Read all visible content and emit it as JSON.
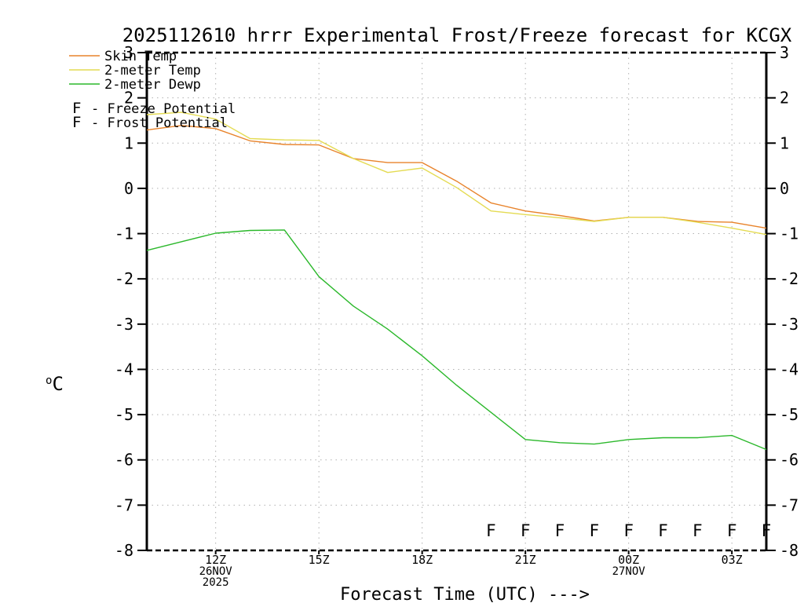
{
  "chart_data": {
    "type": "line",
    "title": "2025112610 hrrr Experimental Frost/Freeze forecast for KCGX",
    "x_axis": {
      "title": "Forecast Time (UTC) --->",
      "range_hours": [
        10,
        28
      ],
      "major_ticks": [
        {
          "hour": 12,
          "label": "12Z",
          "sub1": "26NOV",
          "sub2": "2025"
        },
        {
          "hour": 15,
          "label": "15Z",
          "sub1": "",
          "sub2": ""
        },
        {
          "hour": 18,
          "label": "18Z",
          "sub1": "",
          "sub2": ""
        },
        {
          "hour": 21,
          "label": "21Z",
          "sub1": "",
          "sub2": ""
        },
        {
          "hour": 24,
          "label": "00Z",
          "sub1": "27NOV",
          "sub2": ""
        },
        {
          "hour": 27,
          "label": "03Z",
          "sub1": "",
          "sub2": ""
        }
      ]
    },
    "y_axis": {
      "unit": "°C",
      "min": -8,
      "max": 3,
      "tick_step": 1,
      "tick_labels": [
        "3",
        "2",
        "1",
        "0",
        "-1",
        "-2",
        "-3",
        "-4",
        "-5",
        "-6",
        "-7",
        "-8"
      ]
    },
    "grid": {
      "show": true,
      "color": "#b0b0b0"
    },
    "series": [
      {
        "name": "Skin Temp",
        "color": "#e8832b",
        "points": [
          [
            10,
            1.29
          ],
          [
            11,
            1.39
          ],
          [
            12,
            1.32
          ],
          [
            13,
            1.05
          ],
          [
            14,
            0.97
          ],
          [
            15,
            0.96
          ],
          [
            16,
            0.66
          ],
          [
            17,
            0.57
          ],
          [
            18,
            0.57
          ],
          [
            19,
            0.16
          ],
          [
            20,
            -0.32
          ],
          [
            21,
            -0.5
          ],
          [
            22,
            -0.6
          ],
          [
            23,
            -0.72
          ],
          [
            24,
            -0.64
          ],
          [
            25,
            -0.64
          ],
          [
            26,
            -0.73
          ],
          [
            27,
            -0.75
          ],
          [
            28,
            -0.88
          ]
        ]
      },
      {
        "name": "2-meter Temp",
        "color": "#e4db52",
        "points": [
          [
            10,
            1.63
          ],
          [
            11,
            1.68
          ],
          [
            12,
            1.53
          ],
          [
            13,
            1.1
          ],
          [
            14,
            1.07
          ],
          [
            15,
            1.06
          ],
          [
            16,
            0.66
          ],
          [
            17,
            0.35
          ],
          [
            18,
            0.45
          ],
          [
            19,
            0.02
          ],
          [
            20,
            -0.5
          ],
          [
            21,
            -0.58
          ],
          [
            22,
            -0.65
          ],
          [
            23,
            -0.73
          ],
          [
            24,
            -0.64
          ],
          [
            25,
            -0.64
          ],
          [
            26,
            -0.75
          ],
          [
            27,
            -0.88
          ],
          [
            28,
            -1.02
          ]
        ]
      },
      {
        "name": "2-meter Dewp",
        "color": "#2bb82b",
        "points": [
          [
            10,
            -1.37
          ],
          [
            11,
            -1.18
          ],
          [
            12,
            -0.99
          ],
          [
            13,
            -0.93
          ],
          [
            14,
            -0.92
          ],
          [
            15,
            -1.95
          ],
          [
            16,
            -2.6
          ],
          [
            17,
            -3.11
          ],
          [
            18,
            -3.7
          ],
          [
            19,
            -4.35
          ],
          [
            20,
            -4.95
          ],
          [
            21,
            -5.55
          ],
          [
            22,
            -5.62
          ],
          [
            23,
            -5.65
          ],
          [
            24,
            -5.55
          ],
          [
            25,
            -5.51
          ],
          [
            26,
            -5.51
          ],
          [
            27,
            -5.46
          ],
          [
            28,
            -5.77
          ]
        ]
      }
    ],
    "markers": [
      {
        "name": "Freeze Potential",
        "symbol": "F",
        "color": "#ed1493",
        "value": -7.53,
        "hours": [
          20,
          21,
          22,
          23,
          24,
          25,
          26,
          27,
          28
        ]
      },
      {
        "name": "Frost Potential",
        "symbol": "F",
        "color": "#3e55e6",
        "value": null,
        "hours": []
      }
    ]
  },
  "legend": {
    "lines": [
      {
        "label": "Skin Temp",
        "color": "#e8832b"
      },
      {
        "label": "2-meter Temp",
        "color": "#e4db52"
      },
      {
        "label": "2-meter Dewp",
        "color": "#2bb82b"
      }
    ],
    "markers": [
      {
        "symbol": "F",
        "separator": "-",
        "label": "Freeze Potential",
        "color": "#ed1493"
      },
      {
        "symbol": "F",
        "separator": "-",
        "label": "Frost Potential",
        "color": "#3e55e6"
      }
    ]
  }
}
